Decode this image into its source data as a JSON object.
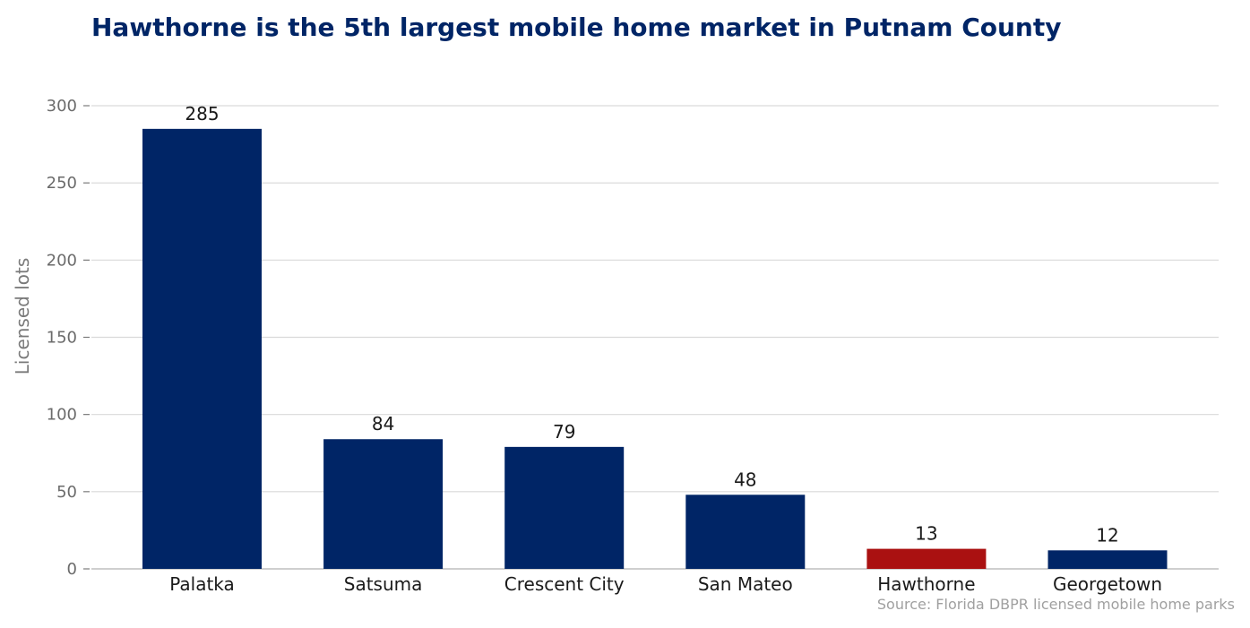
{
  "chart_data": {
    "type": "bar",
    "title": "Hawthorne is the 5th largest mobile home market in Putnam County",
    "xlabel": "",
    "ylabel": "Licensed lots",
    "categories": [
      "Palatka",
      "Satsuma",
      "Crescent City",
      "San Mateo",
      "Hawthorne",
      "Georgetown"
    ],
    "values": [
      285,
      84,
      79,
      48,
      13,
      12
    ],
    "value_labels": [
      "285",
      "84",
      "79",
      "48",
      "13",
      "12"
    ],
    "highlight_category": "Hawthorne",
    "ylim": [
      0,
      300
    ],
    "yticks": [
      0,
      50,
      100,
      150,
      200,
      250,
      300
    ],
    "grid": true,
    "legend": "none",
    "source": "Source: Florida DBPR licensed mobile home parks",
    "colors": {
      "bar": "#002566",
      "highlight": "#aa1111",
      "title": "#002566",
      "grid": "#d9d9d9"
    }
  }
}
